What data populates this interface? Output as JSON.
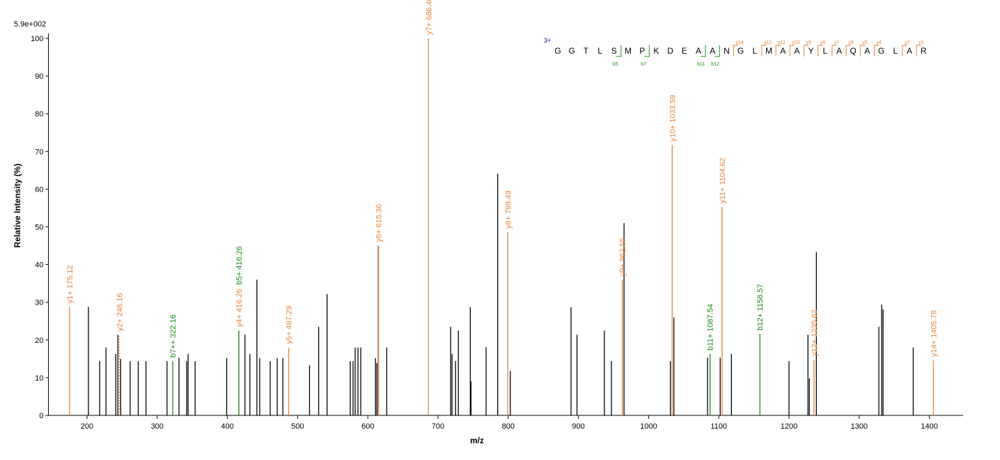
{
  "chart_data": {
    "type": "spectrum",
    "scale_label": "5.9e+002",
    "y_label": "Relative   Intensity (%)",
    "x_label": "m/z",
    "xlim": [
      145,
      1448
    ],
    "ylim": [
      0,
      100
    ],
    "xticks": [
      200,
      300,
      400,
      500,
      600,
      700,
      800,
      900,
      1000,
      1100,
      1200,
      1300,
      1400
    ],
    "yticks": [
      0,
      10,
      20,
      30,
      40,
      50,
      60,
      70,
      80,
      90,
      100
    ],
    "series": [
      {
        "color": "#000000",
        "x": [
          202,
          218,
          227,
          241,
          244,
          248,
          261.5,
          273,
          284,
          314,
          331,
          342,
          344,
          354,
          399,
          425,
          432,
          442,
          446,
          461,
          471,
          479,
          517,
          530,
          542,
          575,
          579,
          582,
          586,
          590,
          611,
          613,
          615,
          627,
          718,
          720,
          725,
          729,
          746,
          747,
          768.5,
          785,
          803,
          889.5,
          898,
          937,
          947,
          965,
          1031,
          1036,
          1084,
          1102,
          1118,
          1200,
          1227,
          1229,
          1239,
          1328,
          1332,
          1334,
          1377
        ],
        "values": [
          28.8,
          14.4,
          18,
          16.3,
          21.4,
          15,
          14.4,
          14.4,
          14.4,
          14.4,
          15.3,
          14.4,
          16.3,
          14.4,
          15.2,
          21.4,
          16.3,
          36,
          15.2,
          14.4,
          15.2,
          15.2,
          13.3,
          23.5,
          32.2,
          14.4,
          14.4,
          18,
          18,
          18,
          15.2,
          13.9,
          45,
          18,
          23.5,
          16.3,
          14.4,
          22.5,
          28.7,
          9,
          18.1,
          64.1,
          11.8,
          28.7,
          21.4,
          22.5,
          14.4,
          51,
          14.4,
          26,
          15.3,
          15.3,
          16.3,
          14.4,
          21.4,
          9.8,
          43.3,
          23.5,
          29.4,
          28.1,
          18
        ]
      },
      {
        "color": "#e8823a",
        "x": [
          175.12,
          416.26,
          487.29,
          615.36,
          686.4,
          799.49,
          962.55,
          1033.59,
          1104.62,
          1235.62,
          1405.78
        ],
        "values": [
          28.8,
          22.5,
          18,
          45,
          100,
          48.6,
          36,
          71.7,
          55.3,
          14.8,
          14.6
        ],
        "labels": [
          "y1+ 175.12",
          "y4+ 416.26",
          "y5+ 487.29",
          "y6+ 615.36",
          "y7+ 686.40",
          "y8+ 799.49",
          "y9+ 962.55",
          "y10+ 1033.59",
          "y11+ 1104.62",
          "y12+ 1235.62",
          "y14+ 1405.78"
        ]
      },
      {
        "color": "#1a8a1a",
        "x": [
          322.16,
          416.26,
          1087.54,
          1158.57
        ],
        "values": [
          14.4,
          22.5,
          16.3,
          21.6
        ],
        "labels": [
          "b7++ 322.16",
          "b5+ 416.26",
          "b11+ 1087.54",
          "b12+ 1158.57"
        ]
      },
      {
        "color": "#e8823a",
        "dashed": true,
        "x": [
          246.16
        ],
        "values": [
          21.4
        ],
        "labels": [
          "y2+ 246.16"
        ]
      }
    ],
    "sequence": {
      "charge": "3+",
      "residues": [
        "G",
        "G",
        "T",
        "L",
        "S",
        "M",
        "P",
        "K",
        "D",
        "E",
        "A",
        "A",
        "N",
        "G",
        "L",
        "M",
        "A",
        "A",
        "Y",
        "L",
        "A",
        "Q",
        "A",
        "G",
        "L",
        "A",
        "R"
      ],
      "y_ions": [
        "y14",
        "y12",
        "y11",
        "y10",
        "y9",
        "y8",
        "y7",
        "y6",
        "y5",
        "y4",
        "y2",
        "y1"
      ],
      "b_ions": [
        "b5",
        "b7",
        "b11",
        "b12"
      ]
    }
  }
}
